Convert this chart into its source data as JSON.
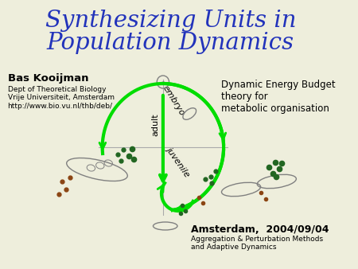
{
  "title_line1": "Synthesizing Units in",
  "title_line2": "Population Dynamics",
  "title_color": "#2233bb",
  "title_fontsize": 21,
  "bg_color": "#eeeedc",
  "author_name": "Bas Kooijman",
  "author_details": "Dept of Theoretical Biology\nVrije Universiteit, Amsterdam\nhttp://www.bio.vu.nl/thb/deb/",
  "right_text": "Dynamic Energy Budget\ntheory for\nmetabolic organisation",
  "bottom_right": "Amsterdam,  2004/09/04",
  "bottom_right2": "Aggregation & Perturbation Methods\nand Adaptive Dynamics",
  "label_embryo": "embryo",
  "label_juvenile": "juvenile",
  "label_adult": "adult",
  "arrow_color": "#00dd00",
  "dark_green": "#226622",
  "brown": "#8B4513"
}
